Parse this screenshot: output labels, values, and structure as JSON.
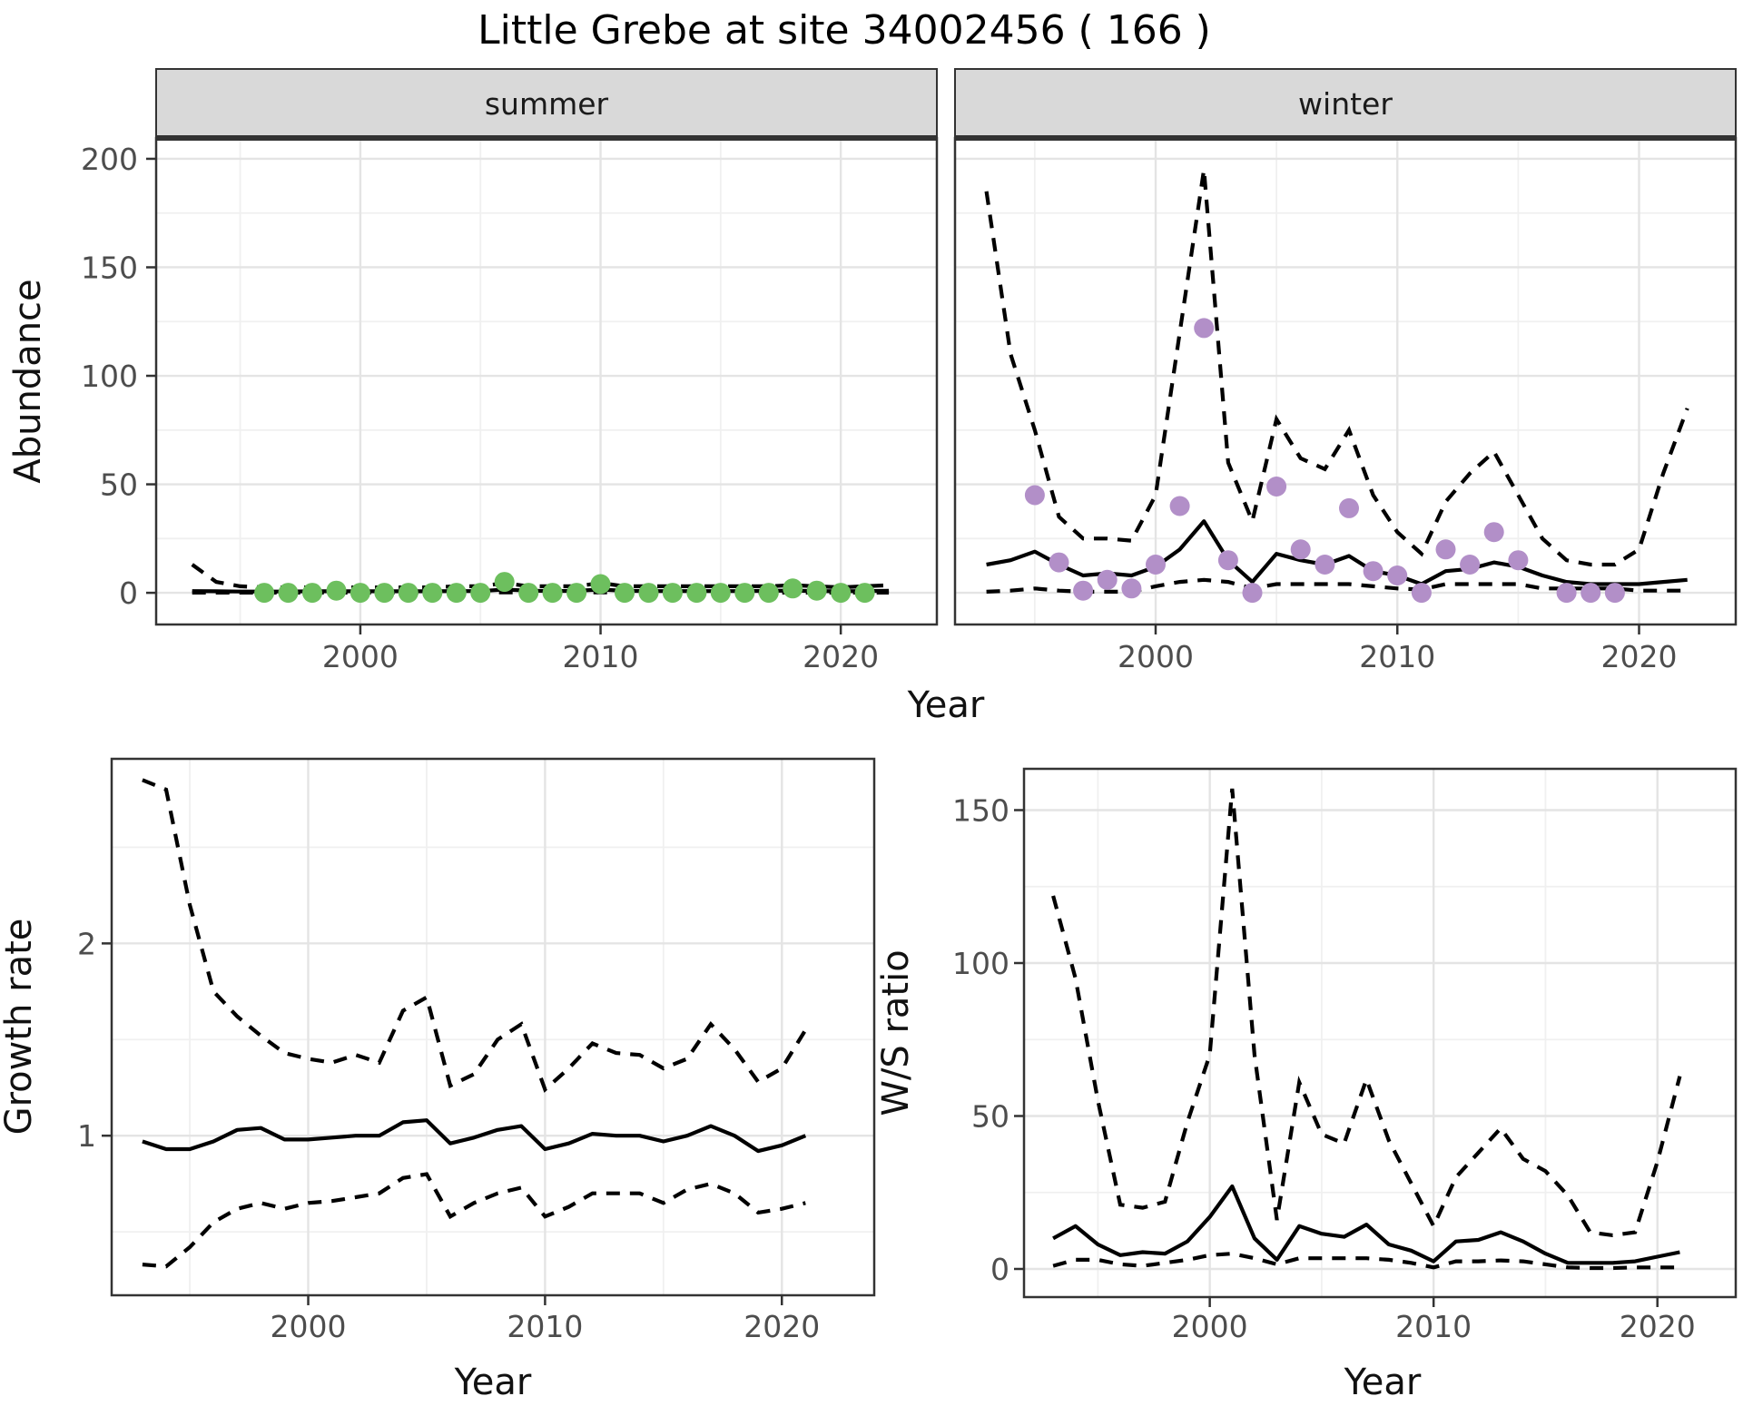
{
  "title": "Little Grebe at site 34002456 ( 166 )",
  "colors": {
    "background": "#ffffff",
    "summer_point": "#6dbf5e",
    "winter_point": "#b28fc8",
    "fit_line": "#000000",
    "ci_line": "#000000",
    "grid_major": "#e4e4e4",
    "grid_minor": "#f0f0f0",
    "strip_background": "#d9d9d9",
    "panel_border": "#333333",
    "tick_label": "#4d4d4d"
  },
  "chart_data": {
    "type": "line",
    "figure_title": "Little Grebe at site 34002456 ( 166 )",
    "legend_position": "none",
    "grid": "on",
    "panels": [
      {
        "key": "summer",
        "facet_label": "summer",
        "ylabel": "Abundance",
        "xlabel": "Year",
        "xlim": [
          1991.5,
          2024.0
        ],
        "ylim": [
          -14.6,
          209.6
        ],
        "x_major": [
          2000,
          2010,
          2020
        ],
        "x_minor": [
          1995,
          2005,
          2015
        ],
        "y_major": [
          0,
          50,
          100,
          150,
          200
        ],
        "y_minor": [
          25,
          75,
          125,
          175
        ],
        "years": [
          1993,
          1994,
          1995,
          1996,
          1997,
          1998,
          1999,
          2000,
          2001,
          2002,
          2003,
          2004,
          2005,
          2006,
          2007,
          2008,
          2009,
          2010,
          2011,
          2012,
          2013,
          2014,
          2015,
          2016,
          2017,
          2018,
          2019,
          2020,
          2021,
          2022
        ],
        "fit": [
          0.8,
          0.7,
          0.6,
          0.6,
          0.6,
          0.7,
          0.7,
          0.7,
          0.7,
          0.7,
          0.7,
          0.8,
          0.8,
          1.5,
          1.0,
          0.8,
          0.9,
          1.5,
          0.9,
          0.8,
          0.8,
          0.8,
          0.8,
          0.8,
          0.9,
          1.0,
          0.8,
          0.7,
          0.8,
          0.9
        ],
        "upper": [
          13,
          5,
          3,
          2.5,
          2.5,
          2.5,
          2.5,
          2.5,
          2.5,
          2.5,
          2.5,
          3,
          3,
          4.5,
          3,
          3,
          3,
          4.5,
          3,
          3,
          3,
          3,
          3,
          3,
          3,
          3.5,
          3,
          2.5,
          3,
          3.5
        ],
        "lower": [
          0.1,
          0.1,
          0.1,
          0.1,
          0.1,
          0.1,
          0.1,
          0.1,
          0.1,
          0.1,
          0.1,
          0.1,
          0.1,
          0.2,
          0.1,
          0.1,
          0.1,
          0.2,
          0.1,
          0.1,
          0.1,
          0.1,
          0.1,
          0.1,
          0.1,
          0.1,
          0.1,
          0.1,
          0.1,
          0.1
        ],
        "obs_years": [
          1996,
          1997,
          1998,
          1999,
          2000,
          2001,
          2002,
          2003,
          2004,
          2005,
          2006,
          2007,
          2008,
          2009,
          2010,
          2011,
          2012,
          2013,
          2014,
          2015,
          2016,
          2017,
          2018,
          2019,
          2020,
          2021
        ],
        "obs": [
          0,
          0,
          0,
          1,
          0,
          0,
          0,
          0,
          0,
          0,
          5,
          0,
          0,
          0,
          4,
          0,
          0,
          0,
          0,
          0,
          0,
          0,
          2,
          1,
          0,
          0
        ],
        "point_color": "#6dbf5e"
      },
      {
        "key": "winter",
        "facet_label": "winter",
        "ylabel": "Abundance",
        "xlabel": "Year",
        "xlim": [
          1991.7,
          2024.0
        ],
        "ylim": [
          -14.6,
          209.6
        ],
        "x_major": [
          2000,
          2010,
          2020
        ],
        "x_minor": [
          1995,
          2005,
          2015
        ],
        "y_major": [
          0,
          50,
          100,
          150,
          200
        ],
        "y_minor": [
          25,
          75,
          125,
          175
        ],
        "years": [
          1993,
          1994,
          1995,
          1996,
          1997,
          1998,
          1999,
          2000,
          2001,
          2002,
          2003,
          2004,
          2005,
          2006,
          2007,
          2008,
          2009,
          2010,
          2011,
          2012,
          2013,
          2014,
          2015,
          2016,
          2017,
          2018,
          2019,
          2020,
          2021,
          2022
        ],
        "fit": [
          13,
          15,
          19,
          13,
          8,
          9,
          8,
          12,
          20,
          33,
          15,
          5,
          18,
          15,
          13,
          17,
          10,
          8,
          4,
          10,
          11,
          14,
          12,
          8,
          5,
          4,
          4,
          4,
          5,
          6
        ],
        "upper": [
          185,
          110,
          75,
          35,
          25,
          25,
          24,
          45,
          120,
          195,
          60,
          33,
          80,
          62,
          57,
          75,
          45,
          28,
          18,
          42,
          55,
          65,
          45,
          25,
          15,
          13,
          13,
          20,
          55,
          85
        ],
        "lower": [
          0.5,
          1,
          2,
          1,
          0.5,
          0.5,
          0.5,
          3,
          5,
          6,
          5,
          2,
          4,
          4,
          4,
          4,
          3,
          2,
          1.5,
          4,
          4,
          4,
          4,
          2,
          2,
          2,
          2,
          1,
          1,
          1
        ],
        "obs_years": [
          1995,
          1996,
          1997,
          1998,
          1999,
          2000,
          2001,
          2002,
          2003,
          2004,
          2005,
          2006,
          2007,
          2008,
          2009,
          2010,
          2011,
          2012,
          2013,
          2014,
          2015,
          2017,
          2018,
          2019
        ],
        "obs": [
          45,
          14,
          1,
          6,
          2,
          13,
          40,
          122,
          15,
          0,
          49,
          20,
          13,
          39,
          10,
          8,
          0,
          20,
          13,
          28,
          15,
          0,
          0,
          0
        ],
        "point_color": "#b28fc8"
      },
      {
        "key": "growth",
        "facet_label": null,
        "ylabel": "Growth rate",
        "xlabel": "Year",
        "xlim": [
          1991.7,
          2023.9
        ],
        "ylim": [
          0.17,
          2.96
        ],
        "x_major": [
          2000,
          2010,
          2020
        ],
        "x_minor": [
          1995,
          2005,
          2015
        ],
        "y_major": [
          1,
          2
        ],
        "y_minor": [
          0.5,
          1.5,
          2.5
        ],
        "years": [
          1993,
          1994,
          1995,
          1996,
          1997,
          1998,
          1999,
          2000,
          2001,
          2002,
          2003,
          2004,
          2005,
          2006,
          2007,
          2008,
          2009,
          2010,
          2011,
          2012,
          2013,
          2014,
          2015,
          2016,
          2017,
          2018,
          2019,
          2020,
          2021
        ],
        "fit": [
          0.97,
          0.93,
          0.93,
          0.97,
          1.03,
          1.04,
          0.98,
          0.98,
          0.99,
          1.0,
          1.0,
          1.07,
          1.08,
          0.96,
          0.99,
          1.03,
          1.05,
          0.93,
          0.96,
          1.01,
          1.0,
          1.0,
          0.97,
          1.0,
          1.05,
          1.0,
          0.92,
          0.95,
          1.0
        ],
        "upper": [
          2.85,
          2.8,
          2.2,
          1.75,
          1.62,
          1.52,
          1.43,
          1.4,
          1.38,
          1.42,
          1.38,
          1.65,
          1.72,
          1.26,
          1.32,
          1.5,
          1.58,
          1.24,
          1.35,
          1.48,
          1.43,
          1.42,
          1.35,
          1.4,
          1.58,
          1.45,
          1.28,
          1.35,
          1.55
        ],
        "lower": [
          0.33,
          0.32,
          0.42,
          0.55,
          0.62,
          0.65,
          0.62,
          0.65,
          0.66,
          0.68,
          0.7,
          0.78,
          0.8,
          0.58,
          0.65,
          0.7,
          0.73,
          0.58,
          0.63,
          0.7,
          0.7,
          0.7,
          0.65,
          0.72,
          0.75,
          0.7,
          0.6,
          0.62,
          0.65
        ],
        "obs_years": null,
        "obs": null,
        "point_color": null
      },
      {
        "key": "ws",
        "facet_label": null,
        "ylabel": "W/S ratio",
        "xlabel": "Year",
        "xlim": [
          1991.7,
          2023.5
        ],
        "ylim": [
          -9.2,
          163.5
        ],
        "x_major": [
          2000,
          2010,
          2020
        ],
        "x_minor": [
          1995,
          2005,
          2015
        ],
        "y_major": [
          0,
          50,
          100,
          150
        ],
        "y_minor": [
          25,
          75,
          125
        ],
        "years": [
          1993,
          1994,
          1995,
          1996,
          1997,
          1998,
          1999,
          2000,
          2001,
          2002,
          2003,
          2004,
          2005,
          2006,
          2007,
          2008,
          2009,
          2010,
          2011,
          2012,
          2013,
          2014,
          2015,
          2016,
          2017,
          2018,
          2019,
          2020,
          2021
        ],
        "fit": [
          10,
          14,
          8,
          4.5,
          5.5,
          5,
          9,
          17,
          27,
          10,
          3,
          14,
          11.5,
          10.5,
          14.5,
          8,
          6,
          2.5,
          9,
          9.5,
          12,
          9,
          5,
          2,
          2,
          2,
          2.5,
          4,
          5.5
        ],
        "upper": [
          122,
          95,
          55,
          21,
          20,
          22,
          48,
          70,
          157,
          70,
          16,
          61,
          44,
          41,
          62,
          42,
          28,
          14,
          30,
          38,
          46,
          36,
          32,
          24,
          12,
          11,
          12,
          35,
          63
        ],
        "lower": [
          1,
          3,
          3,
          1.5,
          1,
          2,
          3,
          4.5,
          5,
          3.5,
          1.5,
          3.5,
          3.5,
          3.5,
          3.5,
          3,
          2,
          0.5,
          2.5,
          2.5,
          2.8,
          2.5,
          1.5,
          0.5,
          0.3,
          0.3,
          0.5,
          0.5,
          0.5
        ],
        "obs_years": null,
        "obs": null,
        "point_color": null
      }
    ]
  }
}
